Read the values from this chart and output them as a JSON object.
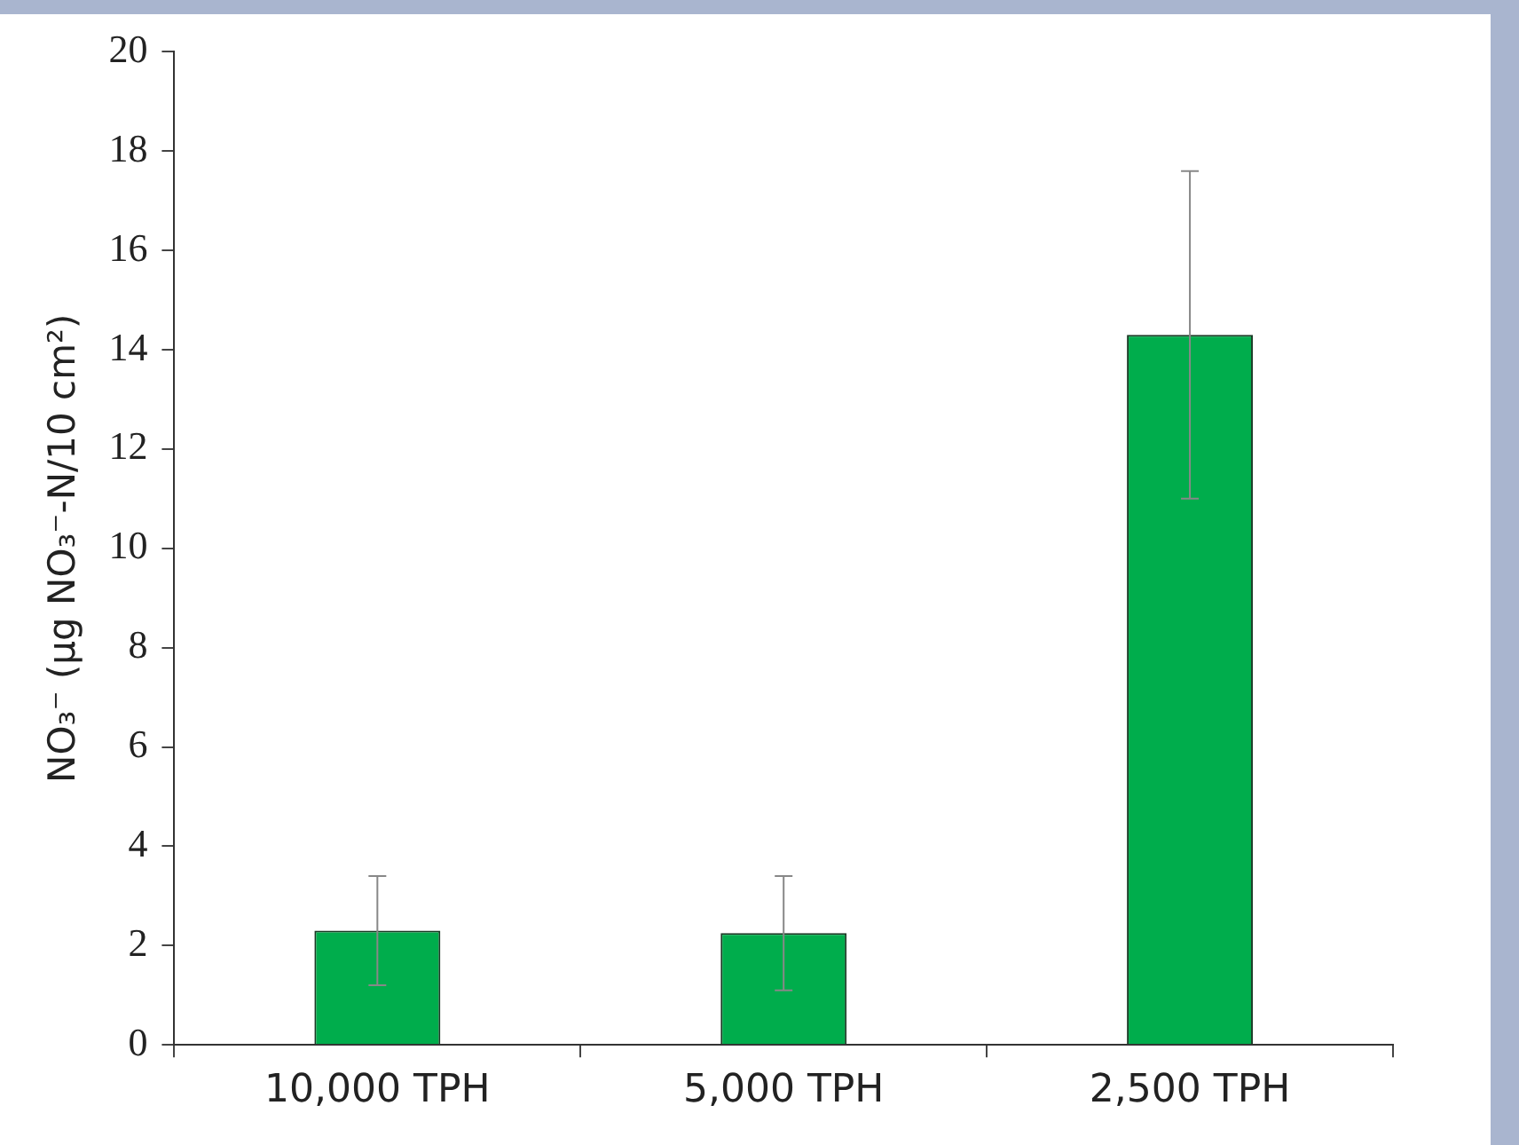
{
  "chart_data": {
    "type": "bar",
    "ylabel": "NO₃⁻ (µg NO₃⁻-N/10 cm²)",
    "categories": [
      "10,000 TPH",
      "5,000 TPH",
      "2,500 TPH"
    ],
    "values": [
      2.3,
      2.25,
      14.3
    ],
    "color": "#00ad4c",
    "errors": [
      1.1,
      1.15,
      3.3
    ],
    "ylim": [
      0,
      20
    ],
    "yticks": [
      0,
      2,
      4,
      6,
      8,
      10,
      12,
      14,
      16,
      18,
      20
    ],
    "grid": false,
    "legend": false
  }
}
